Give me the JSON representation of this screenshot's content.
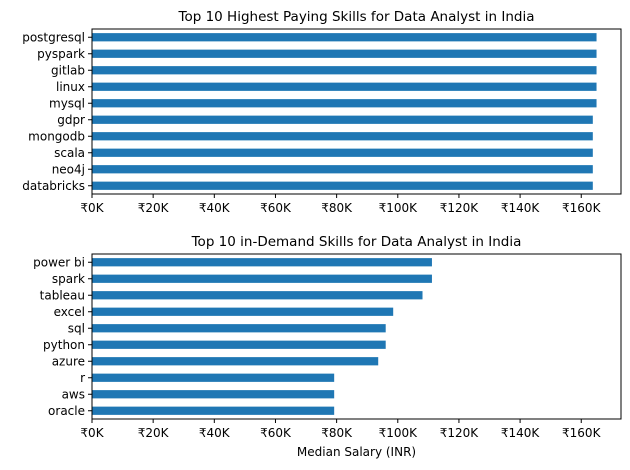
{
  "chart_data": [
    {
      "type": "bar",
      "orientation": "horizontal",
      "title": "Top 10 Highest Paying Skills for Data Analyst in India",
      "xlabel": "",
      "ylabel": "",
      "categories": [
        "postgresql",
        "pyspark",
        "gitlab",
        "linux",
        "mysql",
        "gdpr",
        "mongodb",
        "scala",
        "neo4j",
        "databricks"
      ],
      "values": [
        165000,
        165000,
        165000,
        165000,
        165000,
        163782,
        163782,
        163782,
        163782,
        163782
      ],
      "xlim": [
        0,
        173000
      ],
      "xticks": [
        0,
        20000,
        40000,
        60000,
        80000,
        100000,
        120000,
        140000,
        160000
      ],
      "xtick_labels": [
        "₹0K",
        "₹20K",
        "₹40K",
        "₹60K",
        "₹80K",
        "₹100K",
        "₹120K",
        "₹140K",
        "₹160K"
      ],
      "bar_color": "#1f77b4",
      "grid": false
    },
    {
      "type": "bar",
      "orientation": "horizontal",
      "title": "Top 10 in-Demand Skills for Data Analyst in India",
      "xlabel": "Median Salary (INR)",
      "ylabel": "",
      "categories": [
        "power bi",
        "spark",
        "tableau",
        "excel",
        "sql",
        "python",
        "azure",
        "r",
        "aws",
        "oracle"
      ],
      "values": [
        111175,
        111175,
        108087,
        98500,
        96050,
        96050,
        93600,
        79200,
        79200,
        79200
      ],
      "xlim": [
        0,
        173000
      ],
      "xticks": [
        0,
        20000,
        40000,
        60000,
        80000,
        100000,
        120000,
        140000,
        160000
      ],
      "xtick_labels": [
        "₹0K",
        "₹20K",
        "₹40K",
        "₹60K",
        "₹80K",
        "₹100K",
        "₹120K",
        "₹140K",
        "₹160K"
      ],
      "bar_color": "#1f77b4",
      "grid": false
    }
  ]
}
